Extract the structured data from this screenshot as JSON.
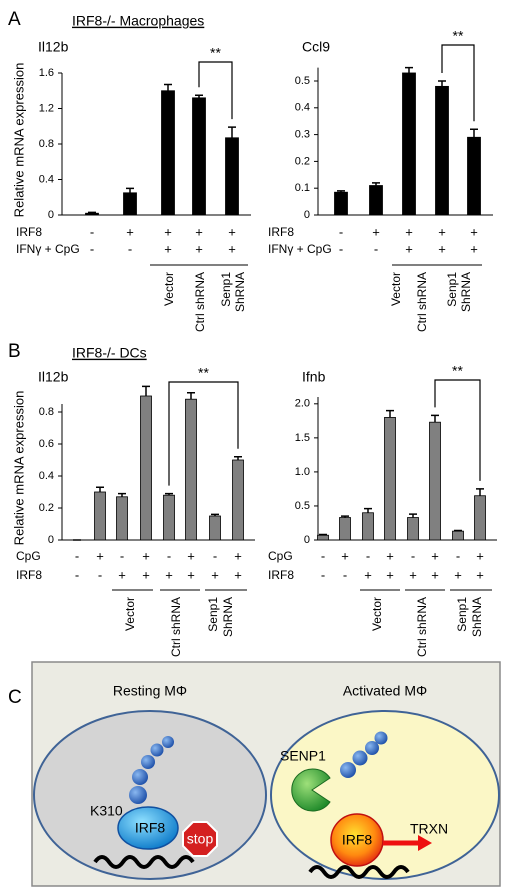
{
  "panels": [
    {
      "letter": "A",
      "title": "IRF8-/- Macrophages"
    },
    {
      "letter": "B",
      "title": "IRF8-/- DCs"
    },
    {
      "letter": "C"
    }
  ],
  "chart_data": [
    {
      "type": "bar",
      "title": "Il12b",
      "ylabel": "Relative mRNA expression",
      "color": "#000000",
      "ylim": [
        0,
        1.6
      ],
      "yticks": [
        0,
        0.4,
        0.8,
        1.2,
        1.6
      ],
      "values": [
        0.02,
        0.25,
        1.4,
        1.32,
        0.87
      ],
      "errors": [
        0.01,
        0.05,
        0.07,
        0.03,
        0.12
      ],
      "rows": [
        {
          "label": "IRF8",
          "signs": [
            "-",
            "+",
            "+",
            "+",
            "+"
          ]
        },
        {
          "label": "IFNγ + CpG",
          "signs": [
            "-",
            "-",
            "+",
            "+",
            "+"
          ]
        }
      ],
      "groups": [
        {
          "lines": [
            "Vector"
          ]
        },
        {
          "lines": [
            "Ctrl shRNA"
          ]
        },
        {
          "lines": [
            "Senp1",
            "ShRNA"
          ]
        }
      ],
      "significance": "**"
    },
    {
      "type": "bar",
      "title": "Ccl9",
      "color": "#000000",
      "ylim": [
        0,
        0.55
      ],
      "yticks": [
        0,
        0.1,
        0.2,
        0.3,
        0.4,
        0.5
      ],
      "values": [
        0.085,
        0.11,
        0.53,
        0.48,
        0.29
      ],
      "errors": [
        0.005,
        0.01,
        0.02,
        0.02,
        0.03
      ],
      "rows": [
        {
          "label": "IRF8",
          "signs": [
            "-",
            "+",
            "+",
            "+",
            "+"
          ]
        },
        {
          "label": "IFNγ + CpG",
          "signs": [
            "-",
            "-",
            "+",
            "+",
            "+"
          ]
        }
      ],
      "groups": [
        {
          "lines": [
            "Vector"
          ]
        },
        {
          "lines": [
            "Ctrl shRNA"
          ]
        },
        {
          "lines": [
            "Senp1",
            "ShRNA"
          ]
        }
      ],
      "significance": "**"
    },
    {
      "type": "bar",
      "title": "Il12b",
      "ylabel": "Relative mRNA expression",
      "color": "#808080",
      "ylim": [
        0,
        0.85
      ],
      "yticks": [
        0,
        0.2,
        0.4,
        0.6,
        0.8
      ],
      "values": [
        0,
        0.3,
        0.27,
        0.9,
        0.28,
        0.88,
        0.15,
        0.5
      ],
      "errors": [
        0,
        0.03,
        0.02,
        0.06,
        0.01,
        0.04,
        0.01,
        0.02
      ],
      "rows": [
        {
          "label": "CpG",
          "signs": [
            "-",
            "+",
            "-",
            "+",
            "-",
            "+",
            "-",
            "+"
          ]
        },
        {
          "label": "IRF8",
          "signs": [
            "-",
            "-",
            "+",
            "+",
            "+",
            "+",
            "+",
            "+"
          ]
        }
      ],
      "groups": [
        {
          "lines": [
            "Vector"
          ]
        },
        {
          "lines": [
            "Ctrl shRNA"
          ]
        },
        {
          "lines": [
            "Senp1",
            "ShRNA"
          ]
        }
      ],
      "significance": "**"
    },
    {
      "type": "bar",
      "title": "Ifnb",
      "color": "#808080",
      "ylim": [
        0,
        2.1
      ],
      "yticks": [
        0,
        0.5,
        {
          "value": 1,
          "label": "1.0"
        },
        1.5,
        {
          "value": 2,
          "label": "2.0"
        }
      ],
      "values": [
        0.07,
        0.33,
        0.4,
        1.8,
        0.33,
        1.73,
        0.13,
        0.65
      ],
      "errors": [
        0.01,
        0.02,
        0.06,
        0.1,
        0.05,
        0.1,
        0.01,
        0.1
      ],
      "rows": [
        {
          "label": "CpG",
          "signs": [
            "-",
            "+",
            "-",
            "+",
            "-",
            "+",
            "-",
            "+"
          ]
        },
        {
          "label": "IRF8",
          "signs": [
            "-",
            "-",
            "+",
            "+",
            "+",
            "+",
            "+",
            "+"
          ]
        }
      ],
      "groups": [
        {
          "lines": [
            "Vector"
          ]
        },
        {
          "lines": [
            "Ctrl shRNA"
          ]
        },
        {
          "lines": [
            "Senp1",
            "ShRNA"
          ]
        }
      ],
      "significance": "**"
    }
  ],
  "diagram": {
    "resting": {
      "title": "Resting MΦ",
      "site": "K310",
      "protein": "IRF8",
      "sign": "stop"
    },
    "activated": {
      "title": "Activated MΦ",
      "enzyme": "SENP1",
      "protein": "IRF8",
      "output": "TRXN"
    }
  }
}
